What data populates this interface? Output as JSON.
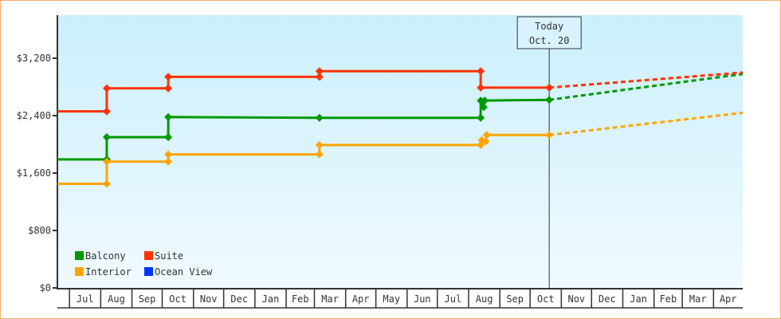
{
  "chart_data": {
    "type": "line",
    "title": "",
    "xlabel": "",
    "ylabel": "",
    "ylim": [
      0,
      3800
    ],
    "yticks": [
      0,
      800,
      1600,
      2400,
      3200
    ],
    "ytick_labels": [
      "$0",
      "$800",
      "$1,600",
      "$2,400",
      "$3,200"
    ],
    "xlim": [
      "2013-06-19",
      "2015-04-30"
    ],
    "xticks": [
      {
        "date": "2013-07-01",
        "label": "Jul"
      },
      {
        "date": "2013-08-01",
        "label": "Aug"
      },
      {
        "date": "2013-09-01",
        "label": "Sep"
      },
      {
        "date": "2013-10-01",
        "label": "Oct"
      },
      {
        "date": "2013-11-01",
        "label": "Nov"
      },
      {
        "date": "2013-12-01",
        "label": "Dec"
      },
      {
        "date": "2014-01-01",
        "label": "Jan"
      },
      {
        "date": "2014-02-01",
        "label": "Feb"
      },
      {
        "date": "2014-03-01",
        "label": "Mar"
      },
      {
        "date": "2014-04-01",
        "label": "Apr"
      },
      {
        "date": "2014-05-01",
        "label": "May"
      },
      {
        "date": "2014-06-01",
        "label": "Jun"
      },
      {
        "date": "2014-07-01",
        "label": "Jul"
      },
      {
        "date": "2014-08-01",
        "label": "Aug"
      },
      {
        "date": "2014-09-01",
        "label": "Sep"
      },
      {
        "date": "2014-10-01",
        "label": "Oct"
      },
      {
        "date": "2014-11-01",
        "label": "Nov"
      },
      {
        "date": "2014-12-01",
        "label": "Dec"
      },
      {
        "date": "2015-01-01",
        "label": "Jan"
      },
      {
        "date": "2015-02-01",
        "label": "Feb"
      },
      {
        "date": "2015-03-01",
        "label": "Mar"
      },
      {
        "date": "2015-04-01",
        "label": "Apr"
      }
    ],
    "today": {
      "date": "2014-10-20",
      "label_line1": "Today",
      "label_line2": "Oct. 20"
    },
    "legend_position": "bottom-left",
    "grid": false,
    "series": [
      {
        "name": "Balcony",
        "color": "#009900",
        "points": [
          [
            "2013-06-19",
            1790
          ],
          [
            "2013-08-07",
            1790
          ],
          [
            "2013-08-07",
            2100
          ],
          [
            "2013-10-07",
            2100
          ],
          [
            "2013-10-07",
            2380
          ],
          [
            "2014-03-06",
            2370
          ],
          [
            "2014-08-13",
            2370
          ],
          [
            "2014-08-13",
            2610
          ],
          [
            "2014-08-16",
            2520
          ],
          [
            "2014-08-17",
            2610
          ],
          [
            "2014-10-20",
            2620
          ]
        ],
        "projection": [
          [
            "2014-10-20",
            2620
          ],
          [
            "2015-04-30",
            2980
          ]
        ]
      },
      {
        "name": "Suite",
        "color": "#ff3300",
        "points": [
          [
            "2013-06-19",
            2460
          ],
          [
            "2013-08-07",
            2460
          ],
          [
            "2013-08-07",
            2780
          ],
          [
            "2013-10-07",
            2780
          ],
          [
            "2013-10-07",
            2940
          ],
          [
            "2014-03-06",
            2940
          ],
          [
            "2014-03-06",
            3020
          ],
          [
            "2014-08-13",
            3020
          ],
          [
            "2014-08-13",
            2790
          ],
          [
            "2014-10-20",
            2790
          ]
        ],
        "projection": [
          [
            "2014-10-20",
            2790
          ],
          [
            "2015-04-30",
            3000
          ]
        ]
      },
      {
        "name": "Interior",
        "color": "#ffa500",
        "points": [
          [
            "2013-06-19",
            1450
          ],
          [
            "2013-08-07",
            1450
          ],
          [
            "2013-08-07",
            1760
          ],
          [
            "2013-10-07",
            1760
          ],
          [
            "2013-10-07",
            1860
          ],
          [
            "2014-03-06",
            1860
          ],
          [
            "2014-03-06",
            1990
          ],
          [
            "2014-08-13",
            1990
          ],
          [
            "2014-08-14",
            2060
          ],
          [
            "2014-08-18",
            2040
          ],
          [
            "2014-08-19",
            2130
          ],
          [
            "2014-10-20",
            2130
          ]
        ],
        "projection": [
          [
            "2014-10-20",
            2130
          ],
          [
            "2015-04-30",
            2440
          ]
        ]
      },
      {
        "name": "Ocean View",
        "color": "#0033ff",
        "points": [],
        "projection": []
      }
    ]
  }
}
